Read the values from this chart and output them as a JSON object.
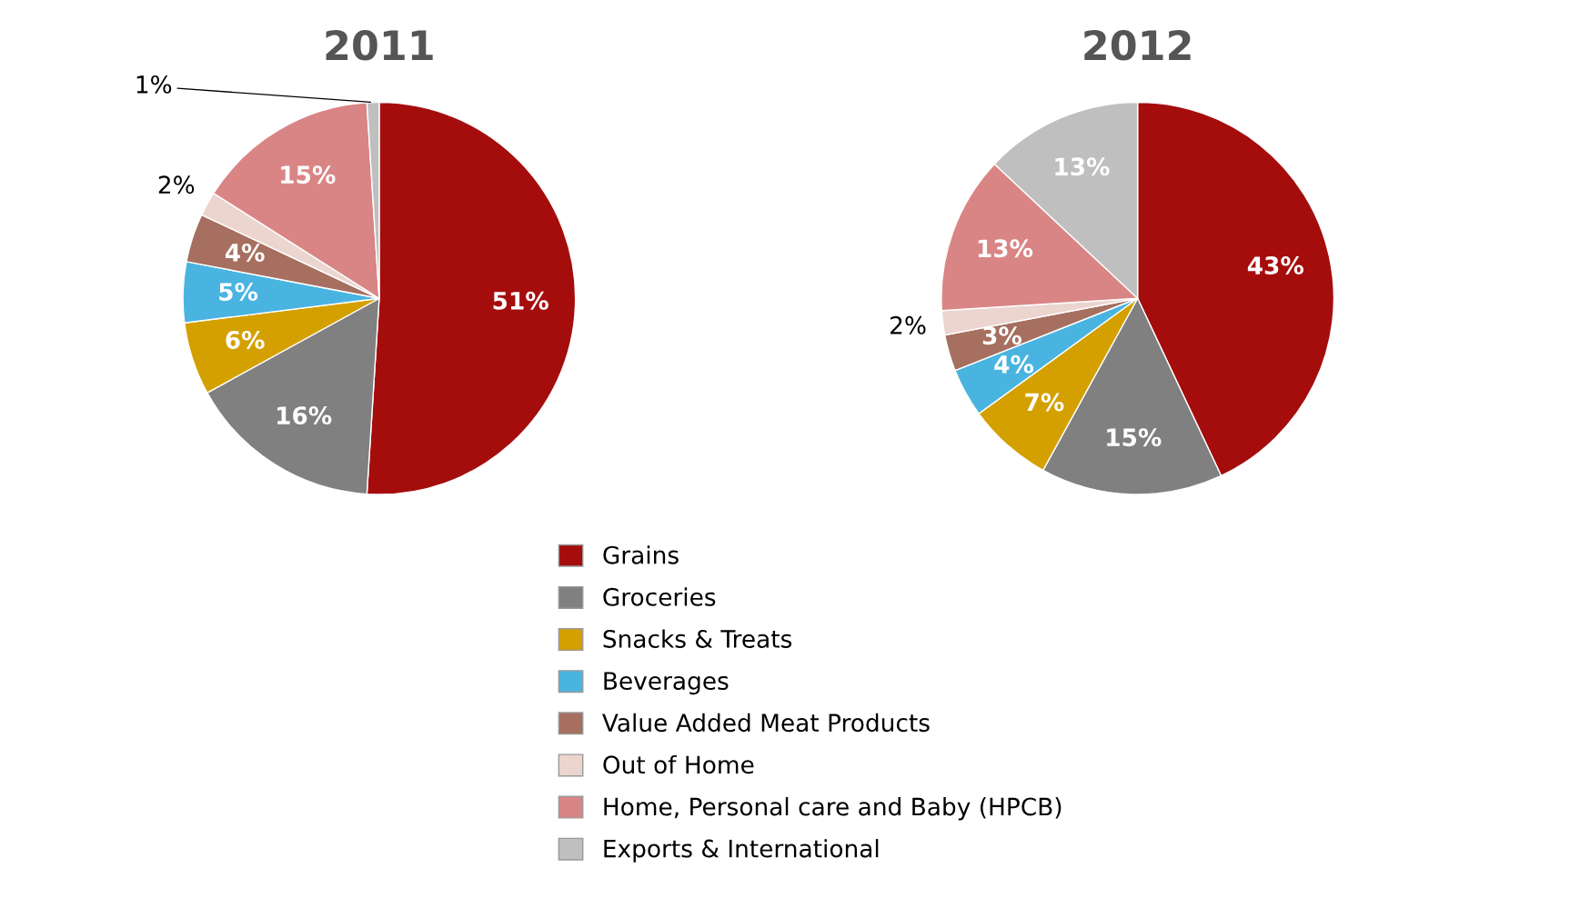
{
  "chart_data": [
    {
      "type": "pie",
      "title": "2011",
      "categories": [
        "Grains",
        "Groceries",
        "Snacks & Treats",
        "Beverages",
        "Value Added Meat Products",
        "Out of Home",
        "Home, Personal care and Baby (HPCB)",
        "Exports & International"
      ],
      "values": [
        51,
        16,
        6,
        5,
        4,
        2,
        15,
        1
      ],
      "colors": [
        "#a50d0d",
        "#808080",
        "#d4a000",
        "#4ab4e0",
        "#a66f5f",
        "#ecd5cf",
        "#d98585",
        "#bfbfbf"
      ],
      "value_labels": [
        "51%",
        "16%",
        "6%",
        "5%",
        "4%",
        "2%",
        "15%",
        "1%"
      ],
      "legend": "bottom"
    },
    {
      "type": "pie",
      "title": "2012",
      "categories": [
        null,
        null,
        null,
        null,
        null,
        null,
        null,
        null
      ],
      "values": [
        43,
        15,
        7,
        4,
        3,
        2,
        13,
        13
      ],
      "colors": [
        "#a50d0d",
        "#808080",
        "#d4a000",
        "#4ab4e0",
        "#a66f5f",
        "#ecd5cf",
        "#d98585",
        "#bfbfbf"
      ],
      "value_labels": [
        "43%",
        "15%",
        "7%",
        "4%",
        "3%",
        "2%",
        "13%",
        "13%"
      ]
    }
  ]
}
